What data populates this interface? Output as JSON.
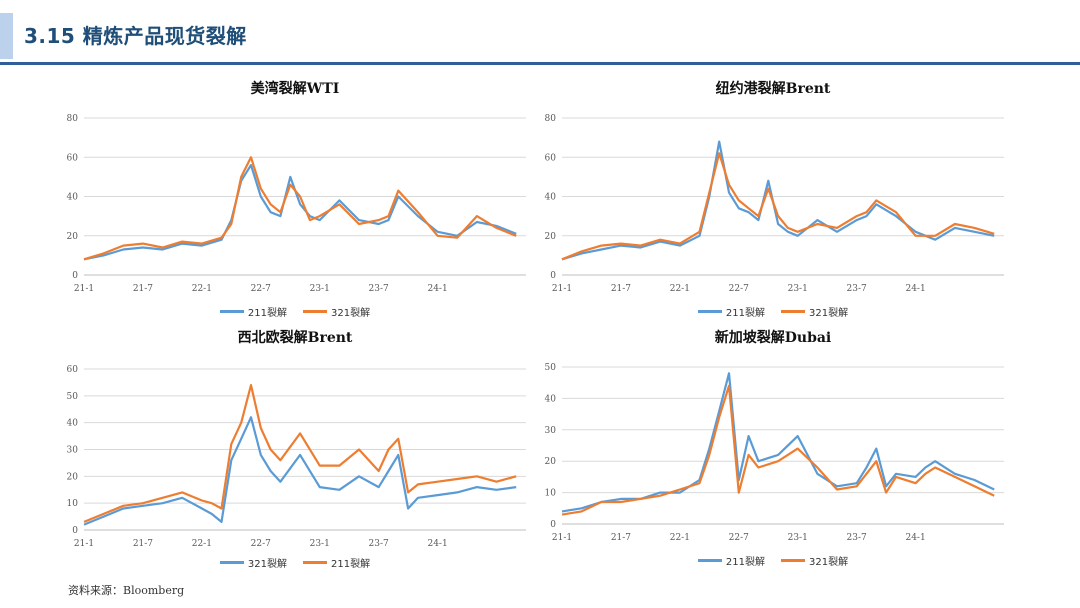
{
  "header": {
    "title": "3.15 精炼产品现货裂解"
  },
  "source": "资料来源：Bloomberg",
  "colors": {
    "blue": "#5b9bd5",
    "orange": "#ed7d31",
    "grid": "#d9d9d9",
    "accent": "#2e5f9b"
  },
  "x_ticks": [
    "21-1",
    "21-7",
    "22-1",
    "22-7",
    "23-1",
    "23-7",
    "24-1"
  ],
  "chart_data": [
    {
      "type": "line",
      "title": "美湾裂解WTI",
      "ylim": [
        0,
        80
      ],
      "yticks": [
        0,
        20,
        40,
        60,
        80
      ],
      "x": [
        "2021-01",
        "2021-03",
        "2021-05",
        "2021-07",
        "2021-09",
        "2021-11",
        "2022-01",
        "2022-03",
        "2022-04",
        "2022-05",
        "2022-06",
        "2022-07",
        "2022-08",
        "2022-09",
        "2022-10",
        "2022-11",
        "2022-12",
        "2023-01",
        "2023-03",
        "2023-05",
        "2023-07",
        "2023-08",
        "2023-09",
        "2023-11",
        "2024-01",
        "2024-03",
        "2024-05",
        "2024-07",
        "2024-09"
      ],
      "series": [
        {
          "name": "211裂解",
          "color": "#5b9bd5",
          "values": [
            8,
            10,
            13,
            14,
            13,
            16,
            15,
            18,
            28,
            48,
            56,
            40,
            32,
            30,
            50,
            36,
            30,
            28,
            38,
            28,
            26,
            28,
            40,
            30,
            22,
            20,
            27,
            25,
            21
          ]
        },
        {
          "name": "321裂解",
          "color": "#ed7d31",
          "values": [
            8,
            11,
            15,
            16,
            14,
            17,
            16,
            19,
            26,
            50,
            60,
            44,
            36,
            32,
            46,
            40,
            28,
            30,
            36,
            26,
            28,
            30,
            43,
            32,
            20,
            19,
            30,
            24,
            20
          ]
        }
      ],
      "legend": [
        "211裂解",
        "321裂解"
      ]
    },
    {
      "type": "line",
      "title": "纽约港裂解Brent",
      "ylim": [
        0,
        80
      ],
      "yticks": [
        0,
        20,
        40,
        60,
        80
      ],
      "x": [
        "2021-01",
        "2021-03",
        "2021-05",
        "2021-07",
        "2021-09",
        "2021-11",
        "2022-01",
        "2022-03",
        "2022-04",
        "2022-05",
        "2022-06",
        "2022-07",
        "2022-08",
        "2022-09",
        "2022-10",
        "2022-11",
        "2022-12",
        "2023-01",
        "2023-03",
        "2023-05",
        "2023-07",
        "2023-08",
        "2023-09",
        "2023-11",
        "2024-01",
        "2024-03",
        "2024-05",
        "2024-07",
        "2024-09"
      ],
      "series": [
        {
          "name": "211裂解",
          "color": "#5b9bd5",
          "values": [
            8,
            11,
            13,
            15,
            14,
            17,
            15,
            20,
            40,
            68,
            42,
            34,
            32,
            28,
            48,
            26,
            22,
            20,
            28,
            22,
            28,
            30,
            36,
            30,
            22,
            18,
            24,
            22,
            20
          ]
        },
        {
          "name": "321裂解",
          "color": "#ed7d31",
          "values": [
            8,
            12,
            15,
            16,
            15,
            18,
            16,
            22,
            42,
            62,
            46,
            38,
            34,
            30,
            44,
            30,
            24,
            22,
            26,
            24,
            30,
            32,
            38,
            32,
            20,
            20,
            26,
            24,
            21
          ]
        }
      ],
      "legend": [
        "211裂解",
        "321裂解"
      ]
    },
    {
      "type": "line",
      "title": "西北欧裂解Brent",
      "ylim": [
        0,
        60
      ],
      "yticks": [
        0,
        10,
        20,
        30,
        40,
        50,
        60
      ],
      "x": [
        "2021-01",
        "2021-03",
        "2021-05",
        "2021-07",
        "2021-09",
        "2021-11",
        "2022-01",
        "2022-02",
        "2022-03",
        "2022-04",
        "2022-05",
        "2022-06",
        "2022-07",
        "2022-08",
        "2022-09",
        "2022-11",
        "2023-01",
        "2023-03",
        "2023-05",
        "2023-07",
        "2023-08",
        "2023-09",
        "2023-10",
        "2023-11",
        "2024-01",
        "2024-03",
        "2024-05",
        "2024-07",
        "2024-09"
      ],
      "series": [
        {
          "name": "321裂解",
          "color": "#5b9bd5",
          "values": [
            2,
            5,
            8,
            9,
            10,
            12,
            8,
            6,
            3,
            26,
            34,
            42,
            28,
            22,
            18,
            28,
            16,
            15,
            20,
            16,
            22,
            28,
            8,
            12,
            13,
            14,
            16,
            15,
            16
          ]
        },
        {
          "name": "211裂解",
          "color": "#ed7d31",
          "values": [
            3,
            6,
            9,
            10,
            12,
            14,
            11,
            10,
            8,
            32,
            40,
            54,
            38,
            30,
            26,
            36,
            24,
            24,
            30,
            22,
            30,
            34,
            14,
            17,
            18,
            19,
            20,
            18,
            20
          ]
        }
      ],
      "legend": [
        "321裂解",
        "211裂解"
      ]
    },
    {
      "type": "line",
      "title": "新加坡裂解Dubai",
      "ylim": [
        0,
        50
      ],
      "yticks": [
        0,
        10,
        20,
        30,
        40,
        50
      ],
      "x": [
        "2021-01",
        "2021-03",
        "2021-05",
        "2021-07",
        "2021-09",
        "2021-11",
        "2022-01",
        "2022-03",
        "2022-04",
        "2022-05",
        "2022-06",
        "2022-07",
        "2022-08",
        "2022-09",
        "2022-11",
        "2023-01",
        "2023-03",
        "2023-05",
        "2023-07",
        "2023-08",
        "2023-09",
        "2023-10",
        "2023-11",
        "2024-01",
        "2024-02",
        "2024-03",
        "2024-05",
        "2024-07",
        "2024-09"
      ],
      "series": [
        {
          "name": "211裂解",
          "color": "#5b9bd5",
          "values": [
            4,
            5,
            7,
            8,
            8,
            10,
            10,
            14,
            24,
            36,
            48,
            14,
            28,
            20,
            22,
            28,
            16,
            12,
            13,
            18,
            24,
            12,
            16,
            15,
            18,
            20,
            16,
            14,
            11
          ]
        },
        {
          "name": "321裂解",
          "color": "#ed7d31",
          "values": [
            3,
            4,
            7,
            7,
            8,
            9,
            11,
            13,
            22,
            34,
            44,
            10,
            22,
            18,
            20,
            24,
            18,
            11,
            12,
            16,
            20,
            10,
            15,
            13,
            16,
            18,
            15,
            12,
            9
          ]
        }
      ],
      "legend": [
        "211裂解",
        "321裂解"
      ]
    }
  ]
}
